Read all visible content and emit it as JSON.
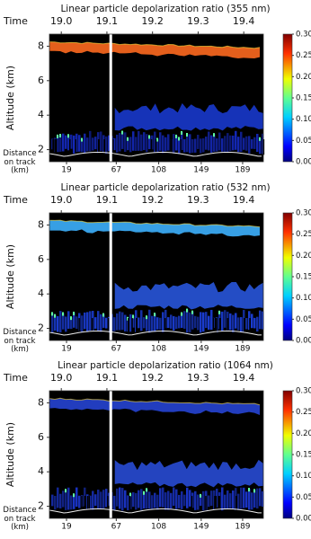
{
  "chart_data": [
    {
      "type": "heatmap",
      "title": "Linear particle depolarization ratio (355 nm)",
      "ylabel": "Altitude (km)",
      "ylim": [
        1.3,
        8.7
      ],
      "yticks": [
        2,
        4,
        6,
        8
      ],
      "x_top_label": "Time",
      "xlim": [
        18.974,
        19.443
      ],
      "xticks": [
        {
          "value": 19,
          "label": "19.0"
        },
        19.1,
        19.2,
        19.3,
        19.4
      ],
      "x2_label": "Distance on track (km)",
      "x2lim": [
        2.5,
        209
      ],
      "x2ticks": [
        19,
        67,
        108,
        149,
        189
      ],
      "clim": [
        0,
        0.3
      ],
      "cticks": [
        {
          "value": 0,
          "label": "0.00"
        },
        {
          "value": 0.05,
          "label": "0.05"
        },
        {
          "value": 0.1,
          "label": "0.10"
        },
        {
          "value": 0.15,
          "label": "0.15"
        },
        {
          "value": 0.2,
          "label": "0.20"
        },
        {
          "value": 0.25,
          "label": "0.25"
        },
        {
          "value": 0.3,
          "label": "0.30"
        }
      ],
      "colormap": "jet",
      "cirrus_color": "#f0641e",
      "cloud_color": "#1a3cd8",
      "aerosol_color": "#1428b8"
    },
    {
      "type": "heatmap",
      "title": "Linear particle depolarization ratio (532 nm)",
      "ylabel": "Altitude (km)",
      "ylim": [
        1.3,
        8.7
      ],
      "yticks": [
        2,
        4,
        6,
        8
      ],
      "x_top_label": "Time",
      "xlim": [
        18.974,
        19.443
      ],
      "xticks": [
        {
          "value": 19,
          "label": "19.0"
        },
        19.1,
        19.2,
        19.3,
        19.4
      ],
      "x2_label": "Distance on track (km)",
      "x2lim": [
        2.5,
        209
      ],
      "x2ticks": [
        19,
        67,
        108,
        149,
        189
      ],
      "clim": [
        0,
        0.3
      ],
      "cticks": [
        {
          "value": 0,
          "label": "0.00"
        },
        {
          "value": 0.05,
          "label": "0.05"
        },
        {
          "value": 0.1,
          "label": "0.10"
        },
        {
          "value": 0.15,
          "label": "0.15"
        },
        {
          "value": 0.2,
          "label": "0.20"
        },
        {
          "value": 0.25,
          "label": "0.25"
        },
        {
          "value": 0.3,
          "label": "0.30"
        }
      ],
      "colormap": "jet",
      "cirrus_color": "#3aa8f0",
      "cloud_color": "#2a5ae8",
      "aerosol_color": "#1a3cd0"
    },
    {
      "type": "heatmap",
      "title": "Linear particle depolarization ratio (1064 nm)",
      "ylabel": "Altitude (km)",
      "ylim": [
        1.3,
        8.7
      ],
      "yticks": [
        2,
        4,
        6,
        8
      ],
      "x_top_label": "Time",
      "xlim": [
        18.974,
        19.443
      ],
      "xticks": [
        {
          "value": 19,
          "label": "19.0"
        },
        19.1,
        19.2,
        19.3,
        19.4
      ],
      "x2_label": "Distance on track (km)",
      "x2lim": [
        2.5,
        209
      ],
      "x2ticks": [
        19,
        67,
        108,
        149,
        189
      ],
      "clim": [
        0,
        0.3
      ],
      "cticks": [
        {
          "value": 0,
          "label": "0.00"
        },
        {
          "value": 0.05,
          "label": "0.05"
        },
        {
          "value": 0.1,
          "label": "0.10"
        },
        {
          "value": 0.15,
          "label": "0.15"
        },
        {
          "value": 0.2,
          "label": "0.20"
        },
        {
          "value": 0.25,
          "label": "0.25"
        },
        {
          "value": 0.3,
          "label": "0.30"
        }
      ],
      "colormap": "jet",
      "cirrus_color": "#2440c8",
      "cloud_color": "#2a50e0",
      "aerosol_color": "#1a34c8"
    }
  ]
}
